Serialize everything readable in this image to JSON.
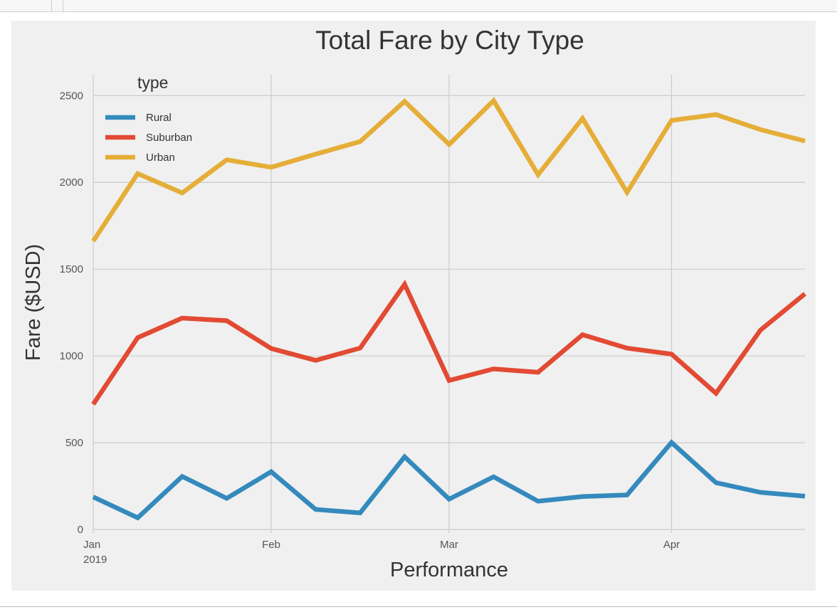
{
  "notebook": {
    "top_cell": {
      "input_prompt": "",
      "code_text": ""
    }
  },
  "chart_data": {
    "type": "line",
    "title": "Total Fare by City Type",
    "xlabel": "Performance",
    "ylabel": "Fare ($USD)",
    "x": [
      "2019-01-06",
      "2019-01-13",
      "2019-01-20",
      "2019-01-27",
      "2019-02-03",
      "2019-02-10",
      "2019-02-17",
      "2019-02-24",
      "2019-03-03",
      "2019-03-10",
      "2019-03-17",
      "2019-03-24",
      "2019-03-31",
      "2019-04-07",
      "2019-04-14",
      "2019-04-21",
      "2019-04-28"
    ],
    "xlim": [
      "2019-01-06",
      "2019-04-28"
    ],
    "xticks": [
      {
        "date": "2019-01-06",
        "label": "Jan",
        "sublabel": "2019"
      },
      {
        "date": "2019-02-03",
        "label": "Feb",
        "sublabel": ""
      },
      {
        "date": "2019-03-03",
        "label": "Mar",
        "sublabel": ""
      },
      {
        "date": "2019-04-07",
        "label": "Apr",
        "sublabel": ""
      }
    ],
    "ylim": [
      -20,
      2620
    ],
    "yticks": [
      0,
      500,
      1000,
      1500,
      2000,
      2500
    ],
    "grid": true,
    "legend": {
      "title": "type",
      "placement": "upper-left"
    },
    "series": [
      {
        "name": "Rural",
        "color": "#348ABD",
        "values": [
          187.92,
          67.65,
          306.0,
          179.69,
          333.08,
          115.8,
          95.82,
          419.06,
          175.14,
          303.94,
          163.39,
          189.76,
          199.42,
          501.24,
          269.79,
          214.14,
          191.85
        ]
      },
      {
        "name": "Suburban",
        "color": "#E24A33",
        "values": [
          721.6,
          1105.13,
          1218.2,
          1203.28,
          1042.79,
          974.34,
          1045.5,
          1412.74,
          858.46,
          925.27,
          906.2,
          1122.2,
          1045.06,
          1010.73,
          784.82,
          1149.27,
          1357.75
        ]
      },
      {
        "name": "Urban",
        "color": "#E5AE38",
        "values": [
          1661.68,
          2050.43,
          1939.02,
          2129.51,
          2086.94,
          2162.64,
          2235.07,
          2466.29,
          2218.2,
          2470.93,
          2044.42,
          2368.37,
          1942.64,
          2356.7,
          2390.39,
          2303.8,
          2238.29
        ]
      }
    ]
  }
}
